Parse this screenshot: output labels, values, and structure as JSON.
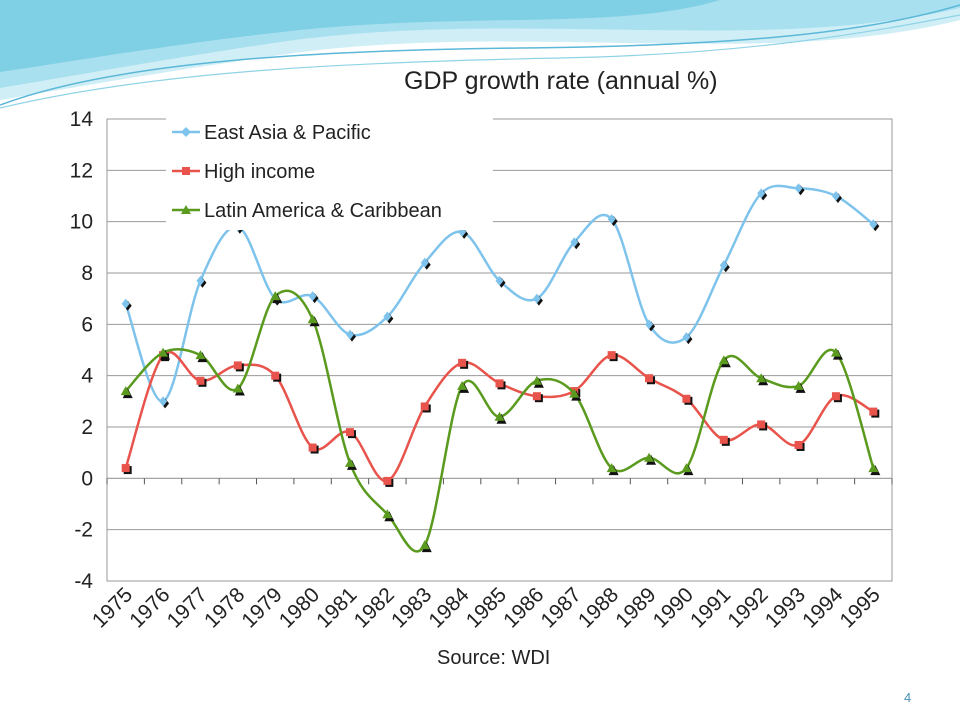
{
  "slide": {
    "page_number": "4",
    "accent_colors": [
      "#5bb8d8",
      "#8fd3e6",
      "#cfeef6"
    ]
  },
  "chart_data": {
    "type": "line",
    "title": "GDP growth rate (annual %)",
    "source": "Source: WDI",
    "xlabel": "",
    "ylabel": "",
    "categories": [
      "1975",
      "1976",
      "1977",
      "1978",
      "1979",
      "1980",
      "1981",
      "1982",
      "1983",
      "1984",
      "1985",
      "1986",
      "1987",
      "1988",
      "1989",
      "1990",
      "1991",
      "1992",
      "1993",
      "1994",
      "1995"
    ],
    "ylim": [
      -4,
      14
    ],
    "yticks": [
      "14",
      "12",
      "10",
      "8",
      "6",
      "4",
      "2",
      "0",
      "-2",
      "-4"
    ],
    "grid": true,
    "legend_position": "top-left",
    "series": [
      {
        "name": "East Asia & Pacific",
        "color": "#7ec3ec",
        "marker": "diamond",
        "values": [
          6.8,
          3.0,
          7.7,
          9.8,
          7.0,
          7.1,
          5.6,
          6.3,
          8.4,
          9.6,
          7.7,
          7.0,
          9.2,
          10.1,
          6.0,
          5.5,
          8.3,
          11.1,
          11.3,
          11.0,
          9.9
        ]
      },
      {
        "name": "High income",
        "color": "#e8534b",
        "marker": "square",
        "values": [
          0.4,
          4.8,
          3.8,
          4.4,
          4.0,
          1.2,
          1.8,
          -0.1,
          2.8,
          4.5,
          3.7,
          3.2,
          3.4,
          4.8,
          3.9,
          3.1,
          1.5,
          2.1,
          1.3,
          3.2,
          2.6
        ]
      },
      {
        "name": "Latin America & Caribbean",
        "color": "#5a9a1e",
        "marker": "triangle",
        "values": [
          3.4,
          4.9,
          4.8,
          3.5,
          7.1,
          6.2,
          0.6,
          -1.4,
          -2.6,
          3.6,
          2.4,
          3.8,
          3.3,
          0.4,
          0.8,
          0.4,
          4.6,
          3.9,
          3.6,
          4.9,
          0.4
        ]
      }
    ]
  }
}
